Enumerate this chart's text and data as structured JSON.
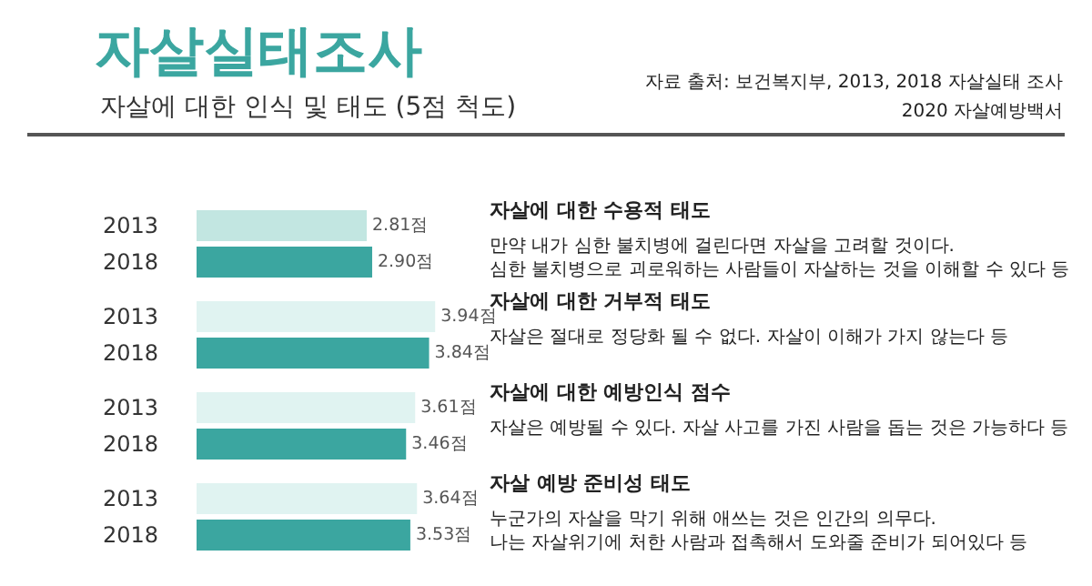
{
  "chart_data": {
    "type": "bar",
    "orientation": "horizontal",
    "title": "자살실태조사",
    "subtitle": "자살에 대한 인식 및 태도 (5점 척도)",
    "categories": [
      "2013",
      "2018",
      "2013",
      "2018",
      "2013",
      "2018",
      "2013",
      "2018"
    ],
    "values": [
      2.81,
      2.9,
      3.94,
      3.84,
      3.61,
      3.46,
      3.64,
      3.53
    ],
    "value_labels": [
      "2.81점",
      "2.90점",
      "3.94점",
      "3.84점",
      "3.61점",
      "3.46점",
      "3.64점",
      "3.53점"
    ],
    "colors": [
      "#c2e6e1",
      "#3ba6a0",
      "#e0f3f1",
      "#3ba6a0",
      "#e0f3f1",
      "#3ba6a0",
      "#e0f3f1",
      "#3ba6a0"
    ],
    "annotations": [
      "자살에 대한 수용적 태도",
      "만약 내가 심한 불치병에 걸린다면 자살을 고려할 것이다.\n심한 불치병으로 괴로워하는 사람들이 자살하는 것을 이해할 수 있다 등",
      "자살에 대한 거부적 태도",
      "자살은 절대로 정당화 될 수 없다. 자살이 이해가 가지 않는다 등",
      "자살에 대한 예방인식 점수",
      "자살은 예방될 수 있다. 자살 사고를 가진 사람을 돕는 것은 가능하다 등",
      "자살 예방 준비성 태도",
      "누군가의 자살을 막기 위해 애쓰는 것은 인간의 의무다.\n나는 자살위기에 처한 사람과 접촉해서 도와줄 준비가 되어있다 등",
      "자료 출처: 보건복지부, 2013, 2018 자살실태 조사",
      "2020 자살예방백서"
    ]
  }
}
